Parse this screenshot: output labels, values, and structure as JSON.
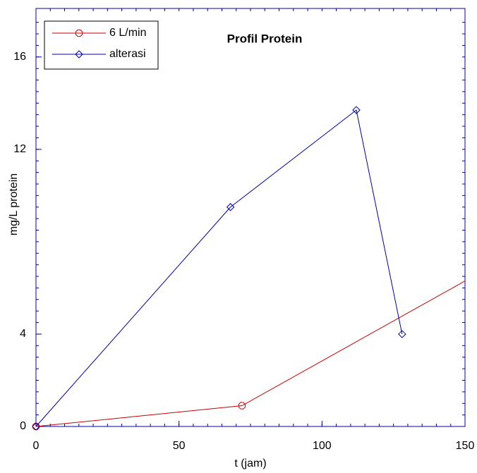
{
  "chart_data": {
    "type": "line",
    "title": "Profil Protein",
    "x_label": "t (jam)",
    "y_label": "mg/L protein",
    "xlim": [
      0,
      150
    ],
    "xticks": [
      0,
      50,
      100,
      150
    ],
    "ylim": [
      0,
      18.1
    ],
    "yticks": [
      0,
      4,
      12,
      16
    ],
    "legend": "upper left",
    "series": [
      {
        "name": "6 L/min",
        "color": "#cc0000",
        "marker": "hexagon",
        "x": [
          0,
          72,
          150
        ],
        "values": [
          0,
          0.9,
          6.3
        ]
      },
      {
        "name": "alterasi",
        "color": "#0000aa",
        "marker": "diamond",
        "x": [
          0,
          68,
          112,
          128
        ],
        "values": [
          0,
          9.5,
          13.7,
          4
        ]
      }
    ]
  }
}
